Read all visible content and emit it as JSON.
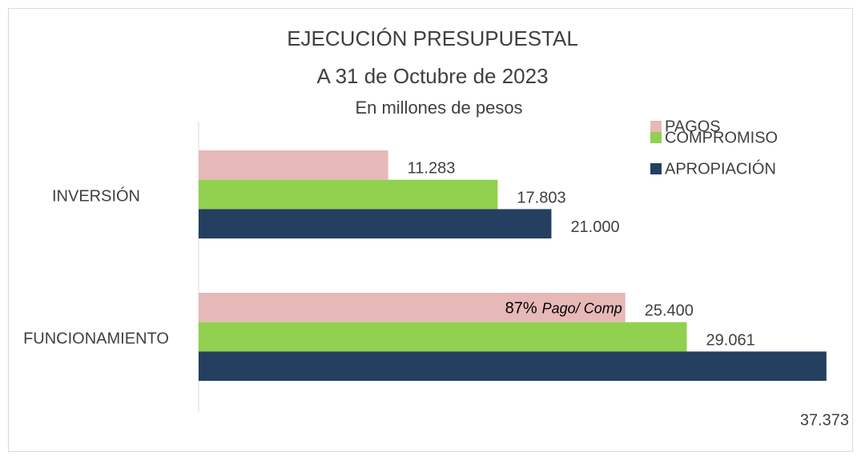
{
  "chart_data": {
    "type": "bar",
    "orientation": "horizontal",
    "title": [
      "EJECUCIÓN PRESUPUESTAL",
      "A 31 de Octubre de 2023"
    ],
    "subtitle": "En millones de pesos",
    "categories": [
      "INVERSIÓN",
      "FUNCIONAMIENTO"
    ],
    "series": [
      {
        "name": "PAGOS",
        "color": "#e6b9b8",
        "values": [
          11283,
          25400
        ],
        "value_labels": [
          "11.283",
          "25.400"
        ]
      },
      {
        "name": "COMPROMISO",
        "color": "#92d050",
        "values": [
          17803,
          29061
        ],
        "value_labels": [
          "17.803",
          "29.061"
        ]
      },
      {
        "name": "APROPIACIÓN",
        "color": "#243f60",
        "values": [
          21000,
          37373
        ],
        "value_labels": [
          "21.000",
          "37.373"
        ]
      }
    ],
    "annotation": [
      "87%",
      "Pago/ Comp"
    ],
    "xlim": [
      0,
      38000
    ],
    "legend": "top-right"
  }
}
